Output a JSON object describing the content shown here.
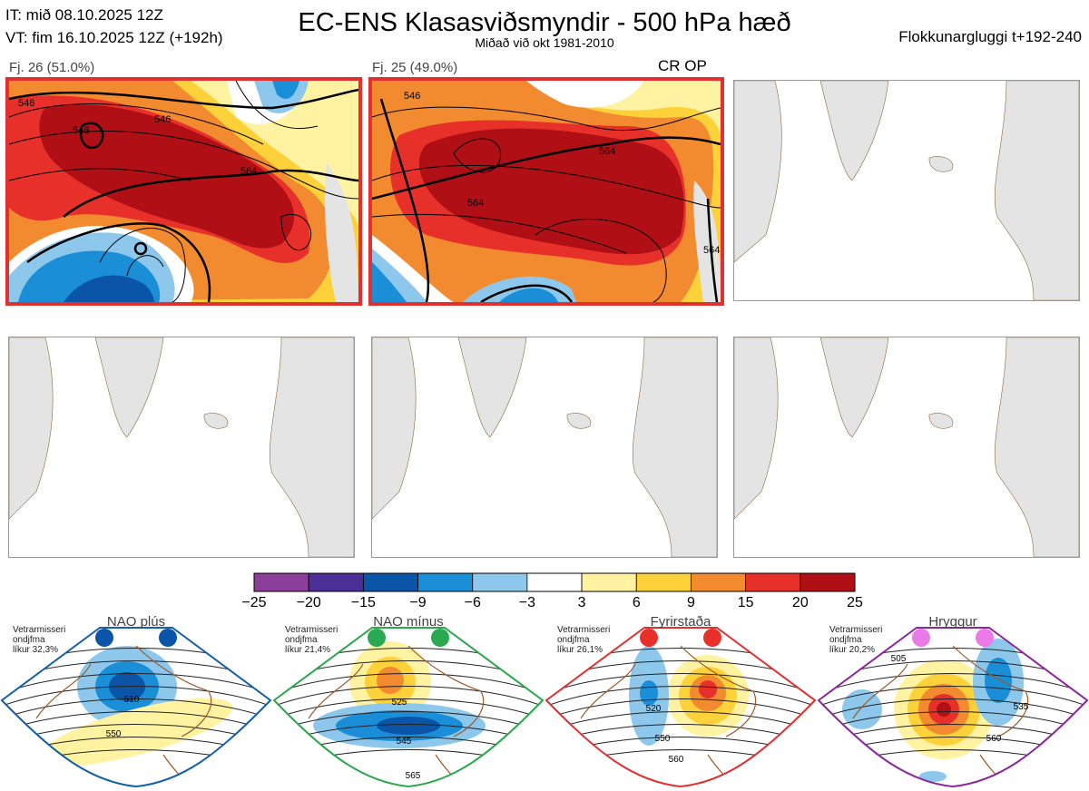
{
  "header": {
    "it_line": "IT: mið 08.10.2025 12Z",
    "vt_line": "VT: fim 16.10.2025 12Z  (+192h)",
    "title": "EC-ENS Klasasviðsmyndir - 500 hPa hæð",
    "subtitle": "Miðað við okt 1981-2010",
    "window_label": "Flokkunargluggi t+192-240"
  },
  "panels": [
    {
      "label": "Fj. 26 (51.0%)",
      "selected": true,
      "contours": [
        "546",
        "564",
        "546",
        "546"
      ]
    },
    {
      "label": "Fj. 25 (49.0%)",
      "selected": true,
      "op_label": "CR OP",
      "contours": [
        "546",
        "564",
        "564",
        "564"
      ]
    },
    {
      "label": "",
      "selected": false
    },
    {
      "label": "",
      "selected": false
    },
    {
      "label": "",
      "selected": false
    },
    {
      "label": "",
      "selected": false
    }
  ],
  "colorbar": {
    "ticks": [
      "−25",
      "−20",
      "−15",
      "−9",
      "−6",
      "−3",
      "3",
      "6",
      "9",
      "15",
      "20",
      "25"
    ],
    "colors": [
      "#8b3f9a",
      "#4b2f96",
      "#0b55a8",
      "#1a8fd8",
      "#8dc8ec",
      "#ffffff",
      "#fff3a2",
      "#fdd13a",
      "#f28a30",
      "#e8302a",
      "#b01015"
    ]
  },
  "regimes": [
    {
      "name": "NAO plús",
      "prob_lines": [
        "Vetrarmisseri",
        "ondjfma",
        "líkur 32,3%"
      ],
      "color": "#1560a8",
      "dot_color": "#0b55a8",
      "contour_labels": [
        "510",
        "550"
      ]
    },
    {
      "name": "NAO mínus",
      "prob_lines": [
        "Vetrarmisseri",
        "ondjfma",
        "líkur 21,4%"
      ],
      "color": "#2aa84a",
      "dot_color": "#2aaa50",
      "contour_labels": [
        "525",
        "545",
        "565"
      ]
    },
    {
      "name": "Fyrirstaða",
      "prob_lines": [
        "Vetrarmisseri",
        "ondjfma",
        "líkur 26,1%"
      ],
      "color": "#e03030",
      "dot_color": "#e8302a",
      "contour_labels": [
        "520",
        "550",
        "560"
      ]
    },
    {
      "name": "Hryggur",
      "prob_lines": [
        "Vetrarmisseri",
        "ondjfma",
        "líkur 20,2%"
      ],
      "color": "#8a2a9a",
      "dot_color": "#e97ae8",
      "contour_labels": [
        "505",
        "535",
        "560"
      ]
    }
  ]
}
